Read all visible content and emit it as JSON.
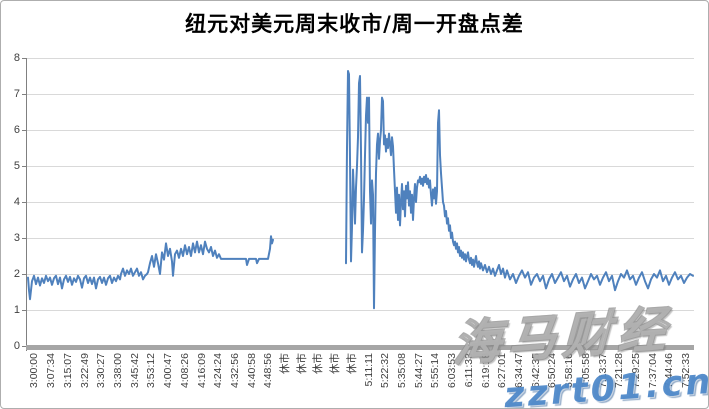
{
  "title": "纽元对美元周末收市/周一开盘点差",
  "watermark": {
    "brand": "海马财经",
    "url": "zzrt01.cn"
  },
  "colors": {
    "line": "#4F81BD",
    "grid": "#D9D9D9",
    "axis_line": "#808080",
    "axis_bar": "#A6A6A6",
    "label_text": "#3f3f3f",
    "watermark_blue": "#4A86C8"
  },
  "chart_data": {
    "type": "line",
    "title": "纽元对美元周末收市/周一开盘点差",
    "xlabel": "",
    "ylabel": "",
    "ylim": [
      0,
      8
    ],
    "yticks": [
      0,
      1,
      2,
      3,
      4,
      5,
      6,
      7,
      8
    ],
    "grid": true,
    "legend": false,
    "x_tick_labels": [
      "3:00:00",
      "3:07:34",
      "3:15:07",
      "3:22:49",
      "3:30:27",
      "3:38:00",
      "3:45:42",
      "3:53:12",
      "4:00:47",
      "4:08:26",
      "4:16:09",
      "4:24:24",
      "4:32:56",
      "4:40:58",
      "4:48:56",
      "休市",
      "休市",
      "休市",
      "休市",
      "休市",
      "5:11:11",
      "5:22:32",
      "5:35:08",
      "5:44:27",
      "5:55:14",
      "6:03:53",
      "6:11:33",
      "6:19:18",
      "6:27:01",
      "6:34:47",
      "6:42:35",
      "6:50:24",
      "6:58:16",
      "7:05:58",
      "7:13:37",
      "7:21:28",
      "7:29:25",
      "7:37:04",
      "7:44:46",
      "7:52:33"
    ],
    "x_axis_note": "point x = pixel offset across plot (0-668); 40 evenly spaced time ticks, gap = market closed (休市)",
    "segments": [
      [
        [
          2,
          1.9
        ],
        [
          3,
          1.55
        ],
        [
          4,
          1.3
        ],
        [
          6,
          1.8
        ],
        [
          8,
          1.95
        ],
        [
          10,
          1.72
        ],
        [
          12,
          1.9
        ],
        [
          14,
          1.68
        ],
        [
          16,
          1.88
        ],
        [
          18,
          1.75
        ],
        [
          20,
          1.95
        ],
        [
          22,
          1.8
        ],
        [
          24,
          1.9
        ],
        [
          26,
          1.7
        ],
        [
          28,
          1.88
        ],
        [
          30,
          1.95
        ],
        [
          32,
          1.72
        ],
        [
          34,
          1.9
        ],
        [
          36,
          1.6
        ],
        [
          38,
          1.85
        ],
        [
          40,
          1.95
        ],
        [
          42,
          1.78
        ],
        [
          44,
          1.92
        ],
        [
          46,
          1.7
        ],
        [
          48,
          1.88
        ],
        [
          50,
          1.78
        ],
        [
          52,
          1.95
        ],
        [
          54,
          1.85
        ],
        [
          56,
          1.62
        ],
        [
          58,
          1.88
        ],
        [
          60,
          1.95
        ],
        [
          62,
          1.75
        ],
        [
          64,
          1.9
        ],
        [
          66,
          1.72
        ],
        [
          68,
          1.9
        ],
        [
          70,
          1.6
        ],
        [
          72,
          1.85
        ],
        [
          74,
          1.92
        ],
        [
          76,
          1.75
        ],
        [
          78,
          1.9
        ],
        [
          80,
          1.7
        ],
        [
          82,
          1.88
        ],
        [
          84,
          1.95
        ],
        [
          86,
          1.75
        ],
        [
          88,
          1.9
        ],
        [
          90,
          1.8
        ],
        [
          92,
          1.95
        ],
        [
          94,
          1.85
        ],
        [
          95,
          2.0
        ],
        [
          97,
          2.15
        ],
        [
          99,
          1.95
        ],
        [
          101,
          2.1
        ],
        [
          103,
          2.0
        ],
        [
          105,
          2.15
        ],
        [
          107,
          1.95
        ],
        [
          109,
          2.05
        ],
        [
          111,
          2.15
        ],
        [
          113,
          1.95
        ],
        [
          115,
          2.05
        ],
        [
          117,
          1.85
        ],
        [
          119,
          1.95
        ],
        [
          121,
          2.0
        ],
        [
          122,
          2.05
        ],
        [
          124,
          2.3
        ],
        [
          126,
          2.5
        ],
        [
          128,
          2.2
        ],
        [
          130,
          2.55
        ],
        [
          132,
          2.3
        ],
        [
          134,
          2.0
        ],
        [
          136,
          2.6
        ],
        [
          138,
          2.4
        ],
        [
          140,
          2.85
        ],
        [
          142,
          2.5
        ],
        [
          144,
          2.7
        ],
        [
          146,
          2.35
        ],
        [
          147,
          1.95
        ],
        [
          149,
          2.55
        ],
        [
          151,
          2.65
        ],
        [
          153,
          2.45
        ],
        [
          155,
          2.7
        ],
        [
          157,
          2.5
        ],
        [
          159,
          2.8
        ],
        [
          161,
          2.55
        ],
        [
          163,
          2.75
        ],
        [
          165,
          2.5
        ],
        [
          167,
          2.85
        ],
        [
          169,
          2.6
        ],
        [
          171,
          2.9
        ],
        [
          173,
          2.6
        ],
        [
          175,
          2.8
        ],
        [
          177,
          2.55
        ],
        [
          179,
          2.9
        ],
        [
          181,
          2.7
        ],
        [
          183,
          2.6
        ],
        [
          185,
          2.75
        ],
        [
          187,
          2.5
        ],
        [
          189,
          2.65
        ],
        [
          191,
          2.45
        ],
        [
          193,
          2.55
        ],
        [
          195,
          2.42
        ],
        [
          220,
          2.42
        ],
        [
          221,
          2.25
        ],
        [
          223,
          2.42
        ],
        [
          230,
          2.42
        ],
        [
          231,
          2.3
        ],
        [
          233,
          2.42
        ],
        [
          242,
          2.42
        ],
        [
          244,
          2.7
        ],
        [
          245,
          3.05
        ],
        [
          246,
          2.85
        ],
        [
          247,
          2.95
        ]
      ],
      [
        [
          320,
          2.3
        ],
        [
          321,
          5.5
        ],
        [
          322,
          7.64
        ],
        [
          323,
          7.55
        ],
        [
          324,
          5.2
        ],
        [
          325,
          2.35
        ],
        [
          326,
          3.3
        ],
        [
          327,
          4.9
        ],
        [
          328,
          4.2
        ],
        [
          329,
          3.4
        ],
        [
          330,
          4.4
        ],
        [
          331,
          5.0
        ],
        [
          332,
          5.8
        ],
        [
          333,
          7.3
        ],
        [
          334,
          7.5
        ],
        [
          335,
          5.4
        ],
        [
          336,
          2.6
        ],
        [
          337,
          3.2
        ],
        [
          338,
          4.1
        ],
        [
          339,
          5.3
        ],
        [
          340,
          6.4
        ],
        [
          341,
          6.9
        ],
        [
          342,
          6.2
        ],
        [
          343,
          6.9
        ],
        [
          344,
          4.3
        ],
        [
          345,
          3.4
        ],
        [
          346,
          4.6
        ],
        [
          347,
          4.2
        ],
        [
          348,
          1.05
        ],
        [
          349,
          3.2
        ],
        [
          350,
          4.8
        ],
        [
          351,
          5.6
        ],
        [
          352,
          5.9
        ],
        [
          353,
          5.2
        ],
        [
          354,
          5.7
        ],
        [
          355,
          6.0
        ],
        [
          356,
          6.9
        ],
        [
          357,
          6.8
        ],
        [
          358,
          5.6
        ],
        [
          359,
          5.85
        ],
        [
          360,
          5.4
        ],
        [
          361,
          5.75
        ],
        [
          362,
          5.5
        ],
        [
          363,
          5.9
        ],
        [
          364,
          5.6
        ],
        [
          365,
          5.3
        ],
        [
          366,
          5.8
        ],
        [
          367,
          5.55
        ],
        [
          368,
          4.9
        ],
        [
          369,
          4.3
        ],
        [
          370,
          3.7
        ],
        [
          371,
          4.4
        ],
        [
          372,
          3.5
        ],
        [
          373,
          4.2
        ],
        [
          374,
          3.35
        ],
        [
          375,
          4.0
        ],
        [
          376,
          4.5
        ],
        [
          377,
          3.8
        ],
        [
          378,
          4.3
        ],
        [
          379,
          3.6
        ],
        [
          380,
          4.45
        ],
        [
          381,
          4.1
        ],
        [
          382,
          4.55
        ],
        [
          383,
          3.9
        ],
        [
          384,
          4.3
        ],
        [
          385,
          3.7
        ],
        [
          386,
          4.2
        ],
        [
          387,
          3.5
        ],
        [
          388,
          4.1
        ],
        [
          389,
          4.5
        ],
        [
          390,
          4.0
        ],
        [
          391,
          4.4
        ],
        [
          392,
          4.6
        ],
        [
          393,
          4.55
        ],
        [
          394,
          4.7
        ],
        [
          395,
          4.5
        ],
        [
          396,
          4.65
        ],
        [
          397,
          4.45
        ],
        [
          398,
          4.7
        ],
        [
          399,
          4.55
        ],
        [
          400,
          4.75
        ],
        [
          401,
          4.5
        ],
        [
          402,
          4.65
        ],
        [
          403,
          4.4
        ],
        [
          404,
          4.6
        ],
        [
          405,
          4.2
        ],
        [
          406,
          3.9
        ],
        [
          407,
          4.35
        ],
        [
          408,
          4.1
        ],
        [
          409,
          4.4
        ],
        [
          410,
          3.95
        ],
        [
          411,
          4.3
        ],
        [
          412,
          6.2
        ],
        [
          413,
          6.55
        ],
        [
          414,
          5.3
        ],
        [
          415,
          4.8
        ],
        [
          416,
          4.4
        ],
        [
          417,
          4.0
        ],
        [
          418,
          3.9
        ],
        [
          419,
          3.6
        ],
        [
          420,
          3.75
        ],
        [
          421,
          3.4
        ],
        [
          422,
          3.55
        ],
        [
          423,
          3.2
        ],
        [
          424,
          3.35
        ],
        [
          425,
          3.0
        ],
        [
          426,
          3.15
        ],
        [
          427,
          2.9
        ],
        [
          428,
          2.8
        ],
        [
          429,
          2.9
        ],
        [
          430,
          2.7
        ],
        [
          431,
          2.85
        ],
        [
          432,
          2.6
        ],
        [
          433,
          2.75
        ],
        [
          434,
          2.5
        ],
        [
          435,
          2.65
        ],
        [
          436,
          2.45
        ],
        [
          437,
          2.6
        ],
        [
          438,
          2.4
        ],
        [
          439,
          2.55
        ],
        [
          440,
          2.35
        ],
        [
          441,
          2.5
        ],
        [
          442,
          2.6
        ],
        [
          443,
          2.4
        ],
        [
          444,
          2.3
        ],
        [
          445,
          2.45
        ],
        [
          446,
          2.25
        ],
        [
          447,
          2.4
        ],
        [
          448,
          2.2
        ],
        [
          449,
          2.35
        ],
        [
          450,
          2.5
        ],
        [
          451,
          2.3
        ],
        [
          452,
          2.2
        ],
        [
          453,
          2.35
        ],
        [
          454,
          2.15
        ],
        [
          455,
          2.3
        ],
        [
          457,
          2.1
        ],
        [
          459,
          2.25
        ],
        [
          461,
          2.05
        ],
        [
          463,
          2.2
        ],
        [
          465,
          2.0
        ],
        [
          467,
          2.15
        ],
        [
          469,
          1.95
        ],
        [
          471,
          2.1
        ],
        [
          473,
          2.25
        ],
        [
          475,
          2.0
        ],
        [
          477,
          2.15
        ],
        [
          479,
          1.9
        ],
        [
          481,
          2.1
        ],
        [
          484,
          1.85
        ],
        [
          487,
          2.0
        ],
        [
          490,
          1.75
        ],
        [
          493,
          1.95
        ],
        [
          496,
          2.1
        ],
        [
          499,
          1.9
        ],
        [
          502,
          2.05
        ],
        [
          505,
          1.7
        ],
        [
          508,
          1.9
        ],
        [
          511,
          2.0
        ],
        [
          514,
          1.8
        ],
        [
          517,
          1.95
        ],
        [
          520,
          1.6
        ],
        [
          523,
          1.85
        ],
        [
          526,
          2.0
        ],
        [
          529,
          1.75
        ],
        [
          532,
          1.9
        ],
        [
          535,
          2.05
        ],
        [
          538,
          1.8
        ],
        [
          541,
          1.95
        ],
        [
          544,
          1.65
        ],
        [
          547,
          1.85
        ],
        [
          550,
          2.0
        ],
        [
          553,
          1.75
        ],
        [
          556,
          1.9
        ],
        [
          559,
          1.6
        ],
        [
          562,
          1.8
        ],
        [
          565,
          2.0
        ],
        [
          568,
          1.85
        ],
        [
          571,
          1.95
        ],
        [
          574,
          1.7
        ],
        [
          577,
          1.9
        ],
        [
          580,
          2.05
        ],
        [
          583,
          1.8
        ],
        [
          586,
          1.95
        ],
        [
          589,
          1.55
        ],
        [
          592,
          1.8
        ],
        [
          595,
          2.0
        ],
        [
          598,
          1.9
        ],
        [
          601,
          2.1
        ],
        [
          604,
          1.85
        ],
        [
          607,
          1.95
        ],
        [
          610,
          1.7
        ],
        [
          613,
          1.9
        ],
        [
          616,
          2.05
        ],
        [
          619,
          1.8
        ],
        [
          622,
          1.6
        ],
        [
          625,
          1.85
        ],
        [
          628,
          2.0
        ],
        [
          631,
          1.9
        ],
        [
          634,
          2.1
        ],
        [
          637,
          1.8
        ],
        [
          640,
          1.95
        ],
        [
          643,
          1.7
        ],
        [
          646,
          1.9
        ],
        [
          649,
          2.05
        ],
        [
          652,
          1.85
        ],
        [
          655,
          1.95
        ],
        [
          658,
          1.75
        ],
        [
          661,
          1.9
        ],
        [
          664,
          2.0
        ],
        [
          667,
          1.95
        ]
      ]
    ]
  }
}
